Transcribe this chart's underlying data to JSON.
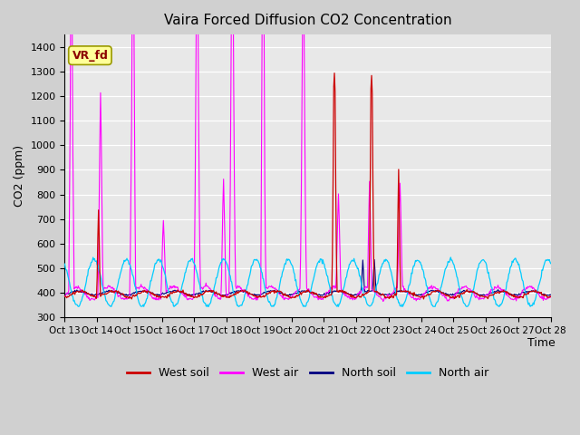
{
  "title": "Vaira Forced Diffusion CO2 Concentration",
  "xlabel": "Time",
  "ylabel": "CO2 (ppm)",
  "ylim": [
    300,
    1450
  ],
  "yticks": [
    300,
    400,
    500,
    600,
    700,
    800,
    900,
    1000,
    1100,
    1200,
    1300,
    1400
  ],
  "legend_colors": [
    "#cc0000",
    "#ff00ff",
    "#000080",
    "#00ccff"
  ],
  "annotation_text": "VR_fd",
  "annotation_color": "#8b0000",
  "annotation_bg": "#ffff99",
  "x_tick_labels": [
    "Oct 13",
    "Oct 14",
    "Oct 15",
    "Oct 16",
    "Oct 17",
    "Oct 18",
    "Oct 19",
    "Oct 20",
    "Oct 21",
    "Oct 22",
    "Oct 23",
    "Oct 24",
    "Oct 25",
    "Oct 26",
    "Oct 27",
    "Oct 28"
  ],
  "num_days": 15,
  "points_per_day": 48
}
